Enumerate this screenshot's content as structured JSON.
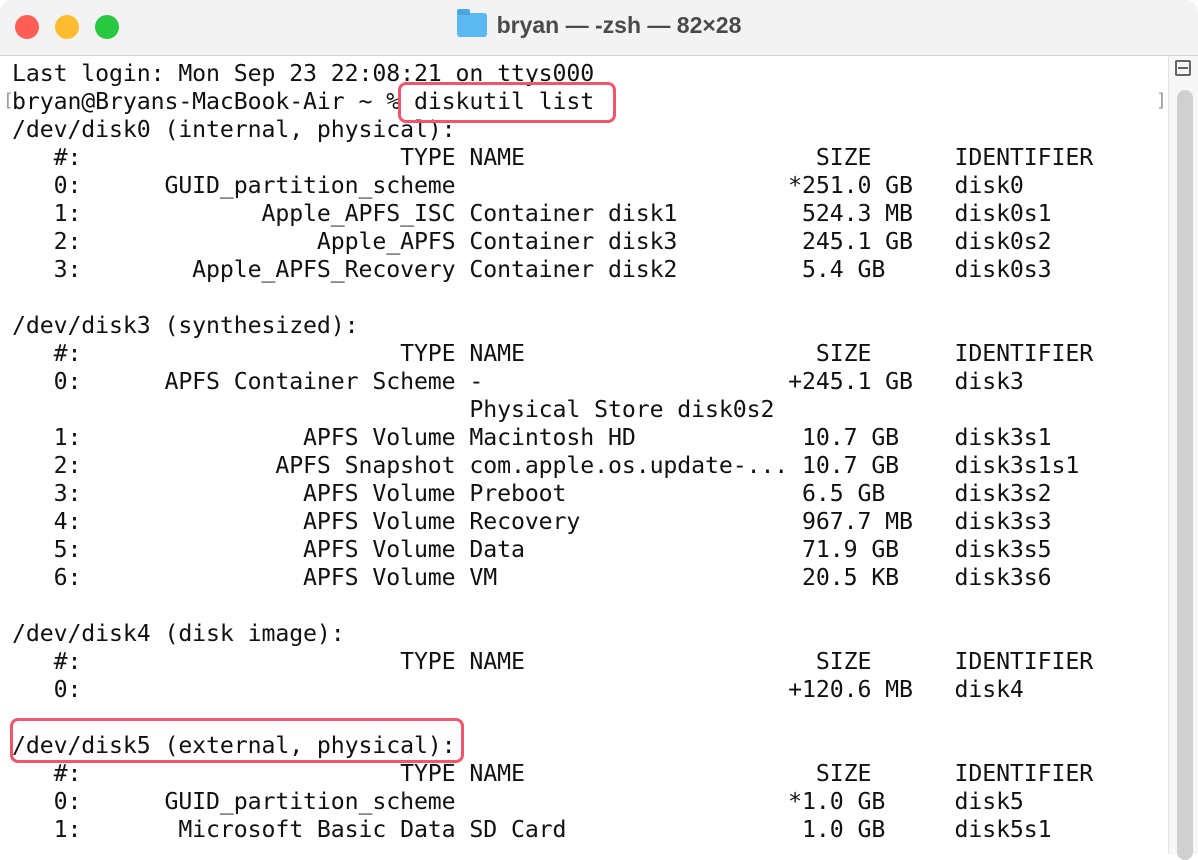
{
  "window": {
    "title": "bryan — -zsh — 82×28",
    "title_icon": "folder-icon",
    "traffic_lights": {
      "close": "#ff5f57",
      "minimize": "#febc2e",
      "zoom": "#28c840"
    }
  },
  "highlight_color": "#f0566b",
  "terminal": {
    "last_login": "Last login: Mon Sep 23 22:08:21 on ttys000",
    "prompt": "bryan@Bryans-MacBook-Air ~ % ",
    "command": "diskutil list",
    "columns": {
      "index": "#:",
      "type": "TYPE",
      "name": "NAME",
      "size": "SIZE",
      "identifier": "IDENTIFIER"
    },
    "disks": [
      {
        "header": "/dev/disk0 (internal, physical):",
        "rows": [
          {
            "index": "0:",
            "type": "GUID_partition_scheme",
            "name": "",
            "size": "*251.0 GB",
            "identifier": "disk0"
          },
          {
            "index": "1:",
            "type": "Apple_APFS_ISC",
            "name": "Container disk1",
            "size": "524.3 MB",
            "identifier": "disk0s1"
          },
          {
            "index": "2:",
            "type": "Apple_APFS",
            "name": "Container disk3",
            "size": "245.1 GB",
            "identifier": "disk0s2"
          },
          {
            "index": "3:",
            "type": "Apple_APFS_Recovery",
            "name": "Container disk2",
            "size": "5.4 GB",
            "identifier": "disk0s3"
          }
        ]
      },
      {
        "header": "/dev/disk3 (synthesized):",
        "rows": [
          {
            "index": "0:",
            "type": "APFS Container Scheme",
            "name": "-",
            "size": "+245.1 GB",
            "identifier": "disk3"
          },
          {
            "index": "",
            "type": "",
            "name": "Physical Store disk0s2",
            "size": "",
            "identifier": ""
          },
          {
            "index": "1:",
            "type": "APFS Volume",
            "name": "Macintosh HD",
            "size": "10.7 GB",
            "identifier": "disk3s1"
          },
          {
            "index": "2:",
            "type": "APFS Snapshot",
            "name": "com.apple.os.update-...",
            "size": "10.7 GB",
            "identifier": "disk3s1s1"
          },
          {
            "index": "3:",
            "type": "APFS Volume",
            "name": "Preboot",
            "size": "6.5 GB",
            "identifier": "disk3s2"
          },
          {
            "index": "4:",
            "type": "APFS Volume",
            "name": "Recovery",
            "size": "967.7 MB",
            "identifier": "disk3s3"
          },
          {
            "index": "5:",
            "type": "APFS Volume",
            "name": "Data",
            "size": "71.9 GB",
            "identifier": "disk3s5"
          },
          {
            "index": "6:",
            "type": "APFS Volume",
            "name": "VM",
            "size": "20.5 KB",
            "identifier": "disk3s6"
          }
        ]
      },
      {
        "header": "/dev/disk4 (disk image):",
        "rows": [
          {
            "index": "0:",
            "type": "",
            "name": "",
            "size": "+120.6 MB",
            "identifier": "disk4"
          }
        ]
      },
      {
        "header": "/dev/disk5 (external, physical):",
        "rows": [
          {
            "index": "0:",
            "type": "GUID_partition_scheme",
            "name": "",
            "size": "*1.0 GB",
            "identifier": "disk5"
          },
          {
            "index": "1:",
            "type": "Microsoft Basic Data",
            "name": "SD Card",
            "size": "1.0 GB",
            "identifier": "disk5s1"
          }
        ]
      }
    ]
  }
}
